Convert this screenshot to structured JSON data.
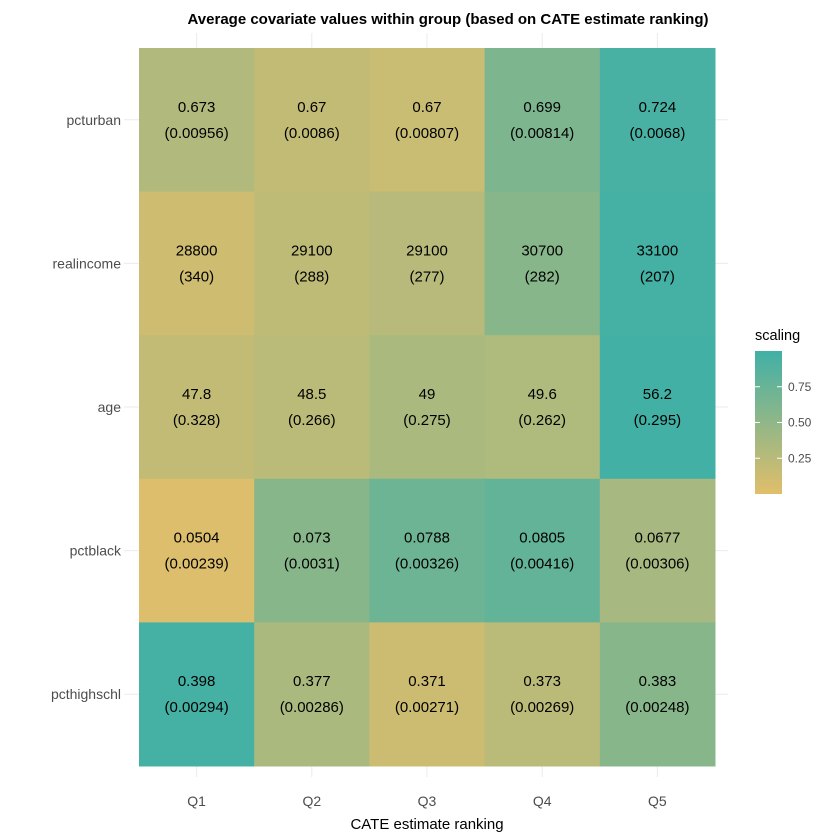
{
  "chart_data": {
    "type": "heatmap",
    "title": "Average covariate values within group (based on CATE estimate ranking)",
    "xlabel": "CATE estimate ranking",
    "ylabel": "",
    "categories": [
      "Q1",
      "Q2",
      "Q3",
      "Q4",
      "Q5"
    ],
    "rows": [
      "pcturban",
      "realincome",
      "age",
      "pctblack",
      "pcthighschl"
    ],
    "cells": [
      [
        {
          "value": "0.673",
          "se": "(0.00956)",
          "scaling": 0.3
        },
        {
          "value": "0.67",
          "se": "(0.0086)",
          "scaling": 0.19
        },
        {
          "value": "0.67",
          "se": "(0.00807)",
          "scaling": 0.15
        },
        {
          "value": "0.699",
          "se": "(0.00814)",
          "scaling": 0.62
        },
        {
          "value": "0.724",
          "se": "(0.0068)",
          "scaling": 0.95
        }
      ],
      [
        {
          "value": "28800",
          "se": "(340)",
          "scaling": 0.12
        },
        {
          "value": "29100",
          "se": "(288)",
          "scaling": 0.22
        },
        {
          "value": "29100",
          "se": "(277)",
          "scaling": 0.26
        },
        {
          "value": "30700",
          "se": "(282)",
          "scaling": 0.55
        },
        {
          "value": "33100",
          "se": "(207)",
          "scaling": 0.97
        }
      ],
      [
        {
          "value": "47.8",
          "se": "(0.328)",
          "scaling": 0.2
        },
        {
          "value": "48.5",
          "se": "(0.266)",
          "scaling": 0.24
        },
        {
          "value": "49",
          "se": "(0.275)",
          "scaling": 0.34
        },
        {
          "value": "49.6",
          "se": "(0.262)",
          "scaling": 0.31
        },
        {
          "value": "56.2",
          "se": "(0.295)",
          "scaling": 0.98
        }
      ],
      [
        {
          "value": "0.0504",
          "se": "(0.00239)",
          "scaling": 0.03
        },
        {
          "value": "0.073",
          "se": "(0.0031)",
          "scaling": 0.55
        },
        {
          "value": "0.0788",
          "se": "(0.00326)",
          "scaling": 0.72
        },
        {
          "value": "0.0805",
          "se": "(0.00416)",
          "scaling": 0.78
        },
        {
          "value": "0.0677",
          "se": "(0.00306)",
          "scaling": 0.36
        }
      ],
      [
        {
          "value": "0.398",
          "se": "(0.00294)",
          "scaling": 0.97
        },
        {
          "value": "0.377",
          "se": "(0.00286)",
          "scaling": 0.34
        },
        {
          "value": "0.371",
          "se": "(0.00271)",
          "scaling": 0.13
        },
        {
          "value": "0.373",
          "se": "(0.00269)",
          "scaling": 0.24
        },
        {
          "value": "0.383",
          "se": "(0.00248)",
          "scaling": 0.55
        }
      ]
    ],
    "legend": {
      "title": "scaling",
      "placement": "right",
      "ticks": [
        {
          "label": "0.75",
          "value": 0.75
        },
        {
          "label": "0.50",
          "value": 0.5
        },
        {
          "label": "0.25",
          "value": 0.25
        }
      ],
      "range": [
        0,
        1
      ],
      "low_color": "#E1BE6A",
      "high_color": "#40B0A6"
    },
    "grid": true
  }
}
